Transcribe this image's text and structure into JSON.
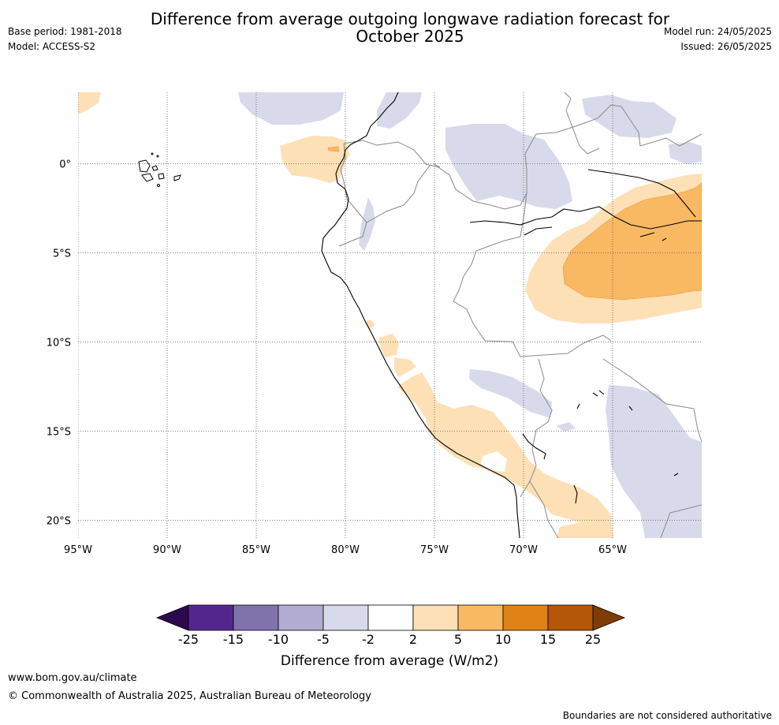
{
  "header": {
    "title_line1": "Difference from average outgoing longwave radiation forecast for",
    "title_line2": "October 2025",
    "base_period": "Base period: 1981-2018",
    "model": "Model: ACCESS-S2",
    "model_run": "Model run: 24/05/2025",
    "issued": "Issued: 26/05/2025"
  },
  "map": {
    "lat_labels": [
      "0°",
      "5°S",
      "10°S",
      "15°S",
      "20°S"
    ],
    "lon_labels": [
      "95°W",
      "90°W",
      "85°W",
      "80°W",
      "75°W",
      "70°W",
      "65°W"
    ],
    "extent": {
      "lon_min": -95,
      "lon_max": -60,
      "lat_min": -21,
      "lat_max": 4
    }
  },
  "colorbar": {
    "ticks": [
      "-25",
      "-15",
      "-10",
      "-5",
      "-2",
      "2",
      "5",
      "10",
      "15",
      "25"
    ],
    "colors": [
      "#2d0a4e",
      "#54278f",
      "#8073ac",
      "#b2abd2",
      "#d8daeb",
      "#ffffff",
      "#fde0b6",
      "#f9b862",
      "#e08214",
      "#b35806",
      "#7f3b08"
    ],
    "label": "Difference from average (W/m2)"
  },
  "footer": {
    "url": "www.bom.gov.au/climate",
    "copyright": "© Commonwealth of Australia 2025, Australian Bureau of Meteorology",
    "disclaimer": "Boundaries are not considered authoritative"
  }
}
